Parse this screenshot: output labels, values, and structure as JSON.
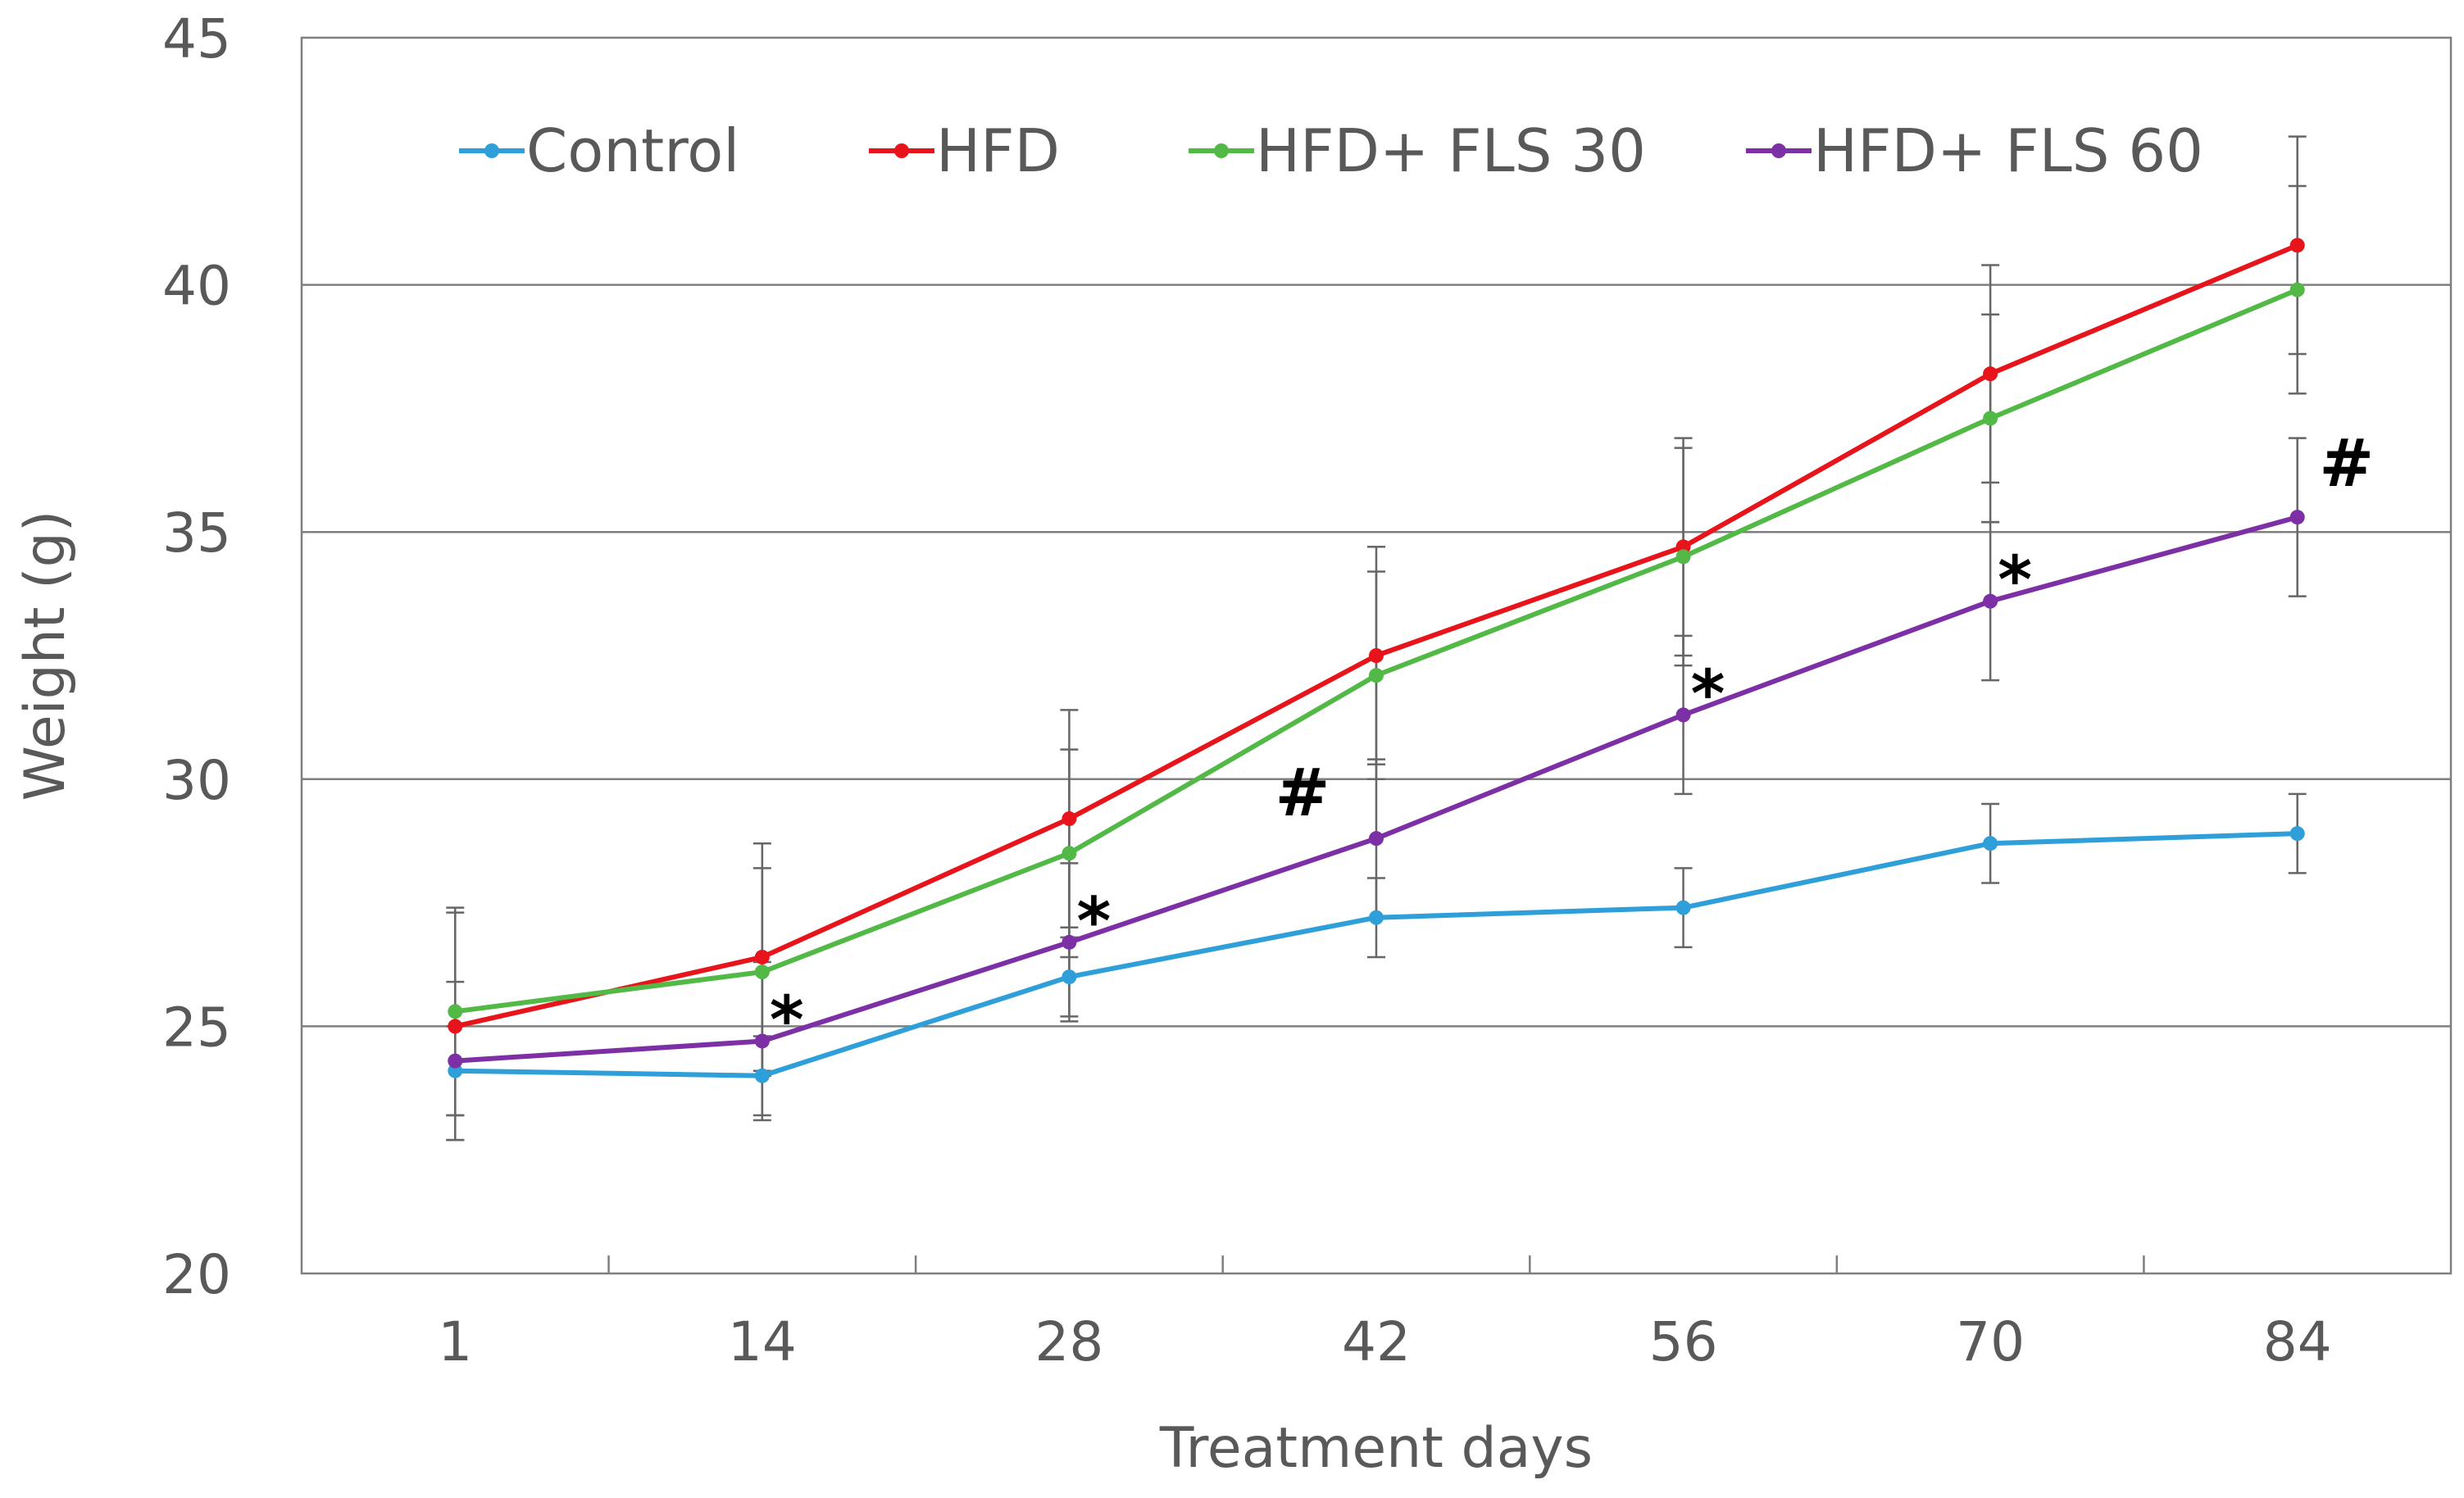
{
  "chart_data": {
    "type": "line",
    "title": "",
    "xlabel": "Treatment days",
    "ylabel": "Weight (g)",
    "categories": [
      "1",
      "14",
      "28",
      "42",
      "56",
      "70",
      "84"
    ],
    "ylim": [
      20,
      45
    ],
    "yticks": [
      "20",
      "25",
      "30",
      "35",
      "40",
      "45"
    ],
    "grid": "horizontal",
    "legend_position": "top",
    "series": [
      {
        "name": "Control",
        "color": "#2e9fd8",
        "values": [
          24.1,
          24.0,
          26.0,
          27.2,
          27.4,
          28.7,
          28.9
        ],
        "errors": [
          0.9,
          0.8,
          0.8,
          0.8,
          0.8,
          0.8,
          0.8
        ]
      },
      {
        "name": "HFD",
        "color": "#e8141b",
        "values": [
          25.0,
          26.4,
          29.2,
          32.5,
          34.7,
          38.2,
          40.8
        ],
        "errors": [
          2.3,
          2.3,
          2.2,
          2.2,
          2.2,
          2.2,
          2.2
        ]
      },
      {
        "name": "HFD+ FLS 30",
        "color": "#52b947",
        "values": [
          25.3,
          26.1,
          28.5,
          32.1,
          34.5,
          37.3,
          39.9
        ],
        "errors": [
          2.1,
          2.1,
          2.1,
          2.1,
          2.2,
          2.1,
          2.1
        ]
      },
      {
        "name": "HFD+ FLS 60",
        "color": "#7d30a5",
        "values": [
          24.3,
          24.7,
          26.7,
          28.8,
          31.3,
          33.6,
          35.3
        ],
        "errors": [
          1.6,
          1.6,
          1.6,
          1.6,
          1.6,
          1.6,
          1.6
        ]
      }
    ],
    "annotations": [
      {
        "category": "14",
        "text": "*"
      },
      {
        "category": "28",
        "text": "*"
      },
      {
        "category": "42",
        "text": "#"
      },
      {
        "category": "56",
        "text": "*"
      },
      {
        "category": "70",
        "text": "*"
      },
      {
        "category": "84",
        "text": "#"
      }
    ]
  }
}
